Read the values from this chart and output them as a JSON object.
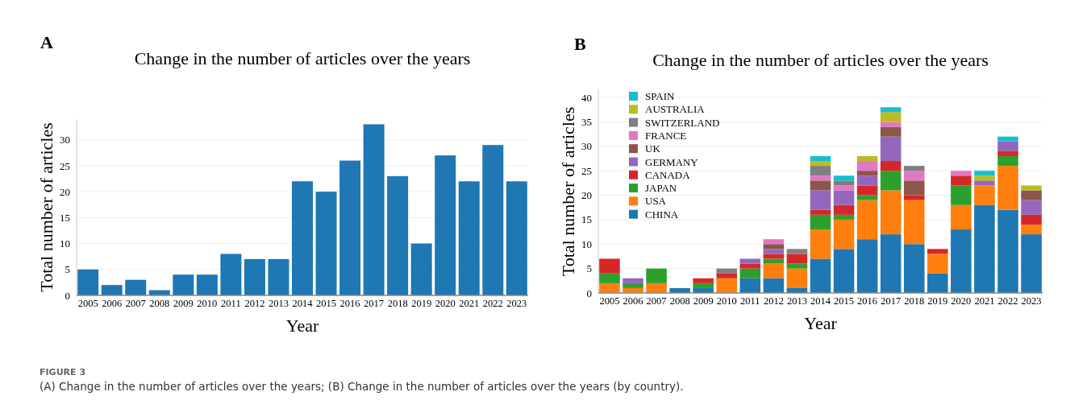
{
  "chart_data": [
    {
      "type": "bar",
      "title": "Change in the number of articles over the years",
      "xlabel": "Year",
      "ylabel": "Total number of articles",
      "categories": [
        "2005",
        "2006",
        "2007",
        "2008",
        "2009",
        "2010",
        "2011",
        "2012",
        "2013",
        "2014",
        "2015",
        "2016",
        "2017",
        "2018",
        "2019",
        "2020",
        "2021",
        "2022",
        "2023"
      ],
      "values": [
        5,
        2,
        3,
        1,
        4,
        4,
        8,
        7,
        7,
        22,
        20,
        26,
        33,
        23,
        10,
        27,
        22,
        29,
        22
      ],
      "color": "#1f77b4",
      "ylim": [
        0,
        34
      ],
      "yticks": [
        0,
        5,
        10,
        15,
        20,
        25,
        30
      ],
      "grid": "y",
      "legend": false,
      "annotations": [
        "A",
        "FIGURE 3",
        "(A) Change in the number of articles over the years; (B) Change in the number of articles over the years (by country)."
      ]
    },
    {
      "type": "bar",
      "stacked": true,
      "title": "Change in the number of articles over the years",
      "xlabel": "Year",
      "ylabel": "Total number of articles",
      "categories": [
        "2005",
        "2006",
        "2007",
        "2008",
        "2009",
        "2010",
        "2011",
        "2012",
        "2013",
        "2014",
        "2015",
        "2016",
        "2017",
        "2018",
        "2019",
        "2020",
        "2021",
        "2022",
        "2023"
      ],
      "ylim": [
        0,
        41.5
      ],
      "yticks": [
        0,
        5,
        10,
        15,
        20,
        25,
        30,
        35,
        40
      ],
      "grid": "y",
      "legend": "top left",
      "annotations": [
        "B"
      ],
      "series": [
        {
          "name": "CHINA",
          "color": "#1f77b4",
          "values": [
            0,
            0,
            0,
            1,
            1,
            0,
            3,
            3,
            1,
            7,
            9,
            11,
            12,
            10,
            4,
            13,
            18,
            17,
            12
          ]
        },
        {
          "name": "USA",
          "color": "#ff7f0e",
          "values": [
            2,
            1,
            2,
            0,
            0,
            3,
            0,
            3,
            4,
            6,
            6,
            8,
            9,
            9,
            4,
            5,
            4,
            9,
            2
          ]
        },
        {
          "name": "JAPAN",
          "color": "#2ca02c",
          "values": [
            2,
            1,
            3,
            0,
            1,
            0,
            2,
            1,
            1,
            3,
            1,
            1,
            4,
            0,
            0,
            4,
            0,
            2,
            0
          ]
        },
        {
          "name": "CANADA",
          "color": "#d62728",
          "values": [
            3,
            0,
            0,
            0,
            1,
            1,
            1,
            1,
            2,
            1,
            2,
            2,
            2,
            1,
            1,
            2,
            0,
            1,
            2
          ]
        },
        {
          "name": "GERMANY",
          "color": "#9467bd",
          "values": [
            0,
            1,
            0,
            0,
            0,
            0,
            1,
            1,
            0,
            4,
            3,
            2,
            5,
            0,
            0,
            0,
            1,
            2,
            3
          ]
        },
        {
          "name": "UK",
          "color": "#8c564b",
          "values": [
            0,
            0,
            0,
            0,
            0,
            0,
            0,
            1,
            0,
            2,
            0,
            1,
            2,
            3,
            0,
            0,
            0,
            0,
            2
          ]
        },
        {
          "name": "FRANCE",
          "color": "#e377c2",
          "values": [
            0,
            0,
            0,
            0,
            0,
            0,
            0,
            1,
            0,
            1,
            1,
            2,
            1,
            2,
            0,
            1,
            0,
            0,
            0
          ]
        },
        {
          "name": "SWITZERLAND",
          "color": "#7f7f7f",
          "values": [
            0,
            0,
            0,
            0,
            0,
            1,
            0,
            0,
            1,
            2,
            1,
            0,
            0,
            1,
            0,
            0,
            0,
            0,
            0
          ]
        },
        {
          "name": "AUSTRALIA",
          "color": "#bcbd22",
          "values": [
            0,
            0,
            0,
            0,
            0,
            0,
            0,
            0,
            0,
            1,
            0,
            1,
            2,
            0,
            0,
            0,
            1,
            0,
            1
          ]
        },
        {
          "name": "SPAIN",
          "color": "#17becf",
          "values": [
            0,
            0,
            0,
            0,
            0,
            0,
            0,
            0,
            0,
            1,
            1,
            0,
            1,
            0,
            0,
            0,
            1,
            1,
            0
          ]
        }
      ]
    }
  ]
}
